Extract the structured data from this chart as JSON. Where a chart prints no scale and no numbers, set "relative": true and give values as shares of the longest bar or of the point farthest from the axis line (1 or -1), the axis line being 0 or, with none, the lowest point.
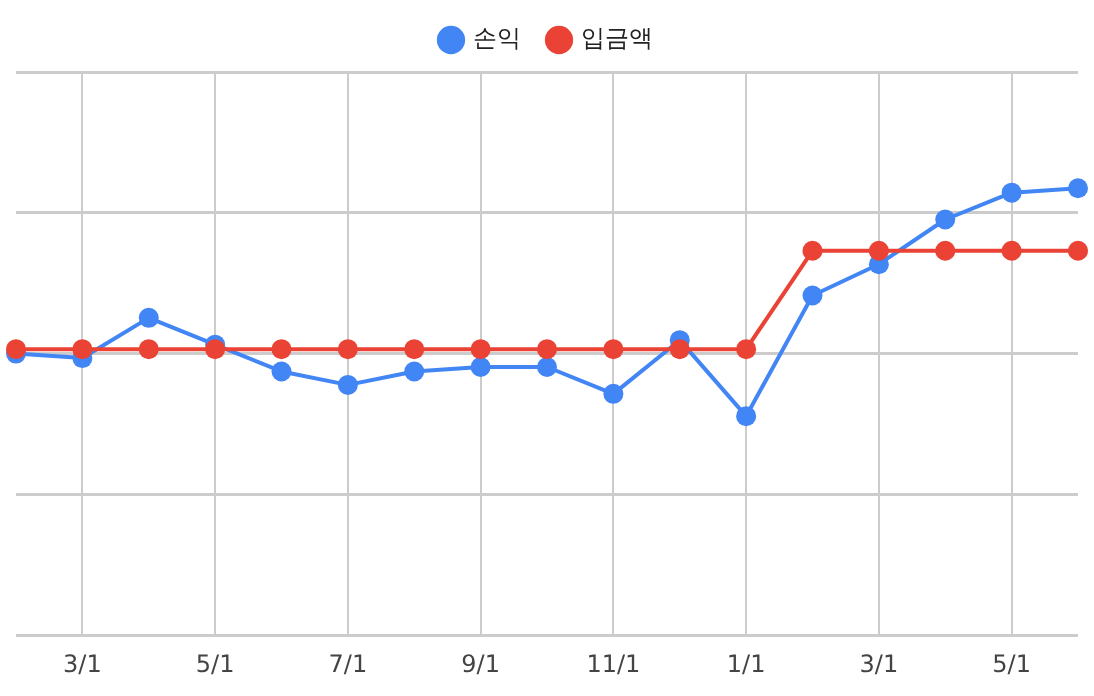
{
  "chart_data": {
    "type": "line",
    "relative": true,
    "grid": true,
    "legend": "top",
    "marker": "circle",
    "categories": [
      null,
      "3/1",
      null,
      "5/1",
      null,
      "7/1",
      null,
      "9/1",
      null,
      "11/1",
      null,
      "1/1",
      null,
      "3/1",
      null,
      "5/1",
      null
    ],
    "series": [
      {
        "name": "손익",
        "color": "#4285f4",
        "values": [
          0.63,
          0.62,
          0.71,
          0.65,
          0.59,
          0.56,
          0.59,
          0.6,
          0.6,
          0.54,
          0.66,
          0.49,
          0.76,
          0.83,
          0.93,
          0.99,
          1
        ]
      },
      {
        "name": "입금액",
        "color": "#ea4335",
        "values": [
          0.64,
          0.64,
          0.64,
          0.64,
          0.64,
          0.64,
          0.64,
          0.64,
          0.64,
          0.64,
          0.64,
          0.64,
          0.86,
          0.86,
          0.86,
          0.86,
          0.86
        ]
      }
    ]
  }
}
